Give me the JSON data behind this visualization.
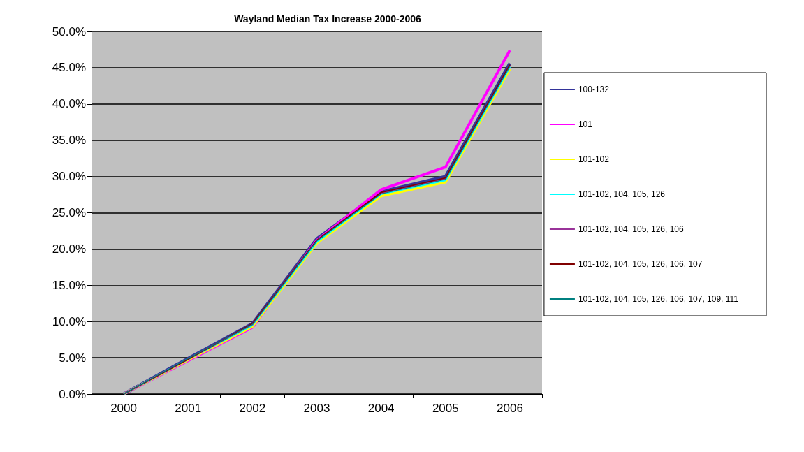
{
  "chart_data": {
    "type": "line",
    "title": "Wayland Median Tax Increase 2000-2006",
    "categories": [
      "2000",
      "2001",
      "2002",
      "2003",
      "2004",
      "2005",
      "2006"
    ],
    "series": [
      {
        "name": "100-132",
        "color": "#333399",
        "values": [
          0,
          4.9,
          9.7,
          21.4,
          27.9,
          30.0,
          45.6
        ]
      },
      {
        "name": "101",
        "color": "#ff00ff",
        "values": [
          0,
          4.6,
          9.2,
          21.2,
          28.2,
          31.3,
          47.4
        ]
      },
      {
        "name": "101-102",
        "color": "#ffff00",
        "values": [
          0,
          4.7,
          9.3,
          20.8,
          27.3,
          29.2,
          44.8
        ]
      },
      {
        "name": "101-102, 104, 105, 126",
        "color": "#00ffff",
        "values": [
          0,
          4.8,
          9.5,
          21.0,
          27.6,
          29.5,
          45.1
        ]
      },
      {
        "name": "101-102, 104, 105, 126, 106",
        "color": "#993399",
        "values": [
          0,
          4.8,
          9.6,
          21.2,
          27.7,
          29.7,
          45.3
        ]
      },
      {
        "name": "101-102, 104, 105, 126, 106, 107",
        "color": "#800000",
        "values": [
          0,
          4.8,
          9.7,
          21.2,
          27.8,
          29.8,
          45.4
        ]
      },
      {
        "name": "101-102, 104, 105, 126, 106, 107, 109, 111",
        "color": "#008080",
        "values": [
          0,
          4.9,
          9.6,
          21.1,
          27.6,
          29.6,
          45.2
        ]
      }
    ],
    "ylim": [
      0,
      50
    ],
    "yticks": [
      {
        "value": 0,
        "label": "0.0%"
      },
      {
        "value": 5,
        "label": "5.0%"
      },
      {
        "value": 10,
        "label": "10.0%"
      },
      {
        "value": 15,
        "label": "15.0%"
      },
      {
        "value": 20,
        "label": "20.0%"
      },
      {
        "value": 25,
        "label": "25.0%"
      },
      {
        "value": 30,
        "label": "30.0%"
      },
      {
        "value": 35,
        "label": "35.0%"
      },
      {
        "value": 40,
        "label": "40.0%"
      },
      {
        "value": 45,
        "label": "45.0%"
      },
      {
        "value": 50,
        "label": "50.0%"
      }
    ],
    "grid": "y",
    "legend": "right",
    "marker": "none",
    "line_style": "solid"
  }
}
